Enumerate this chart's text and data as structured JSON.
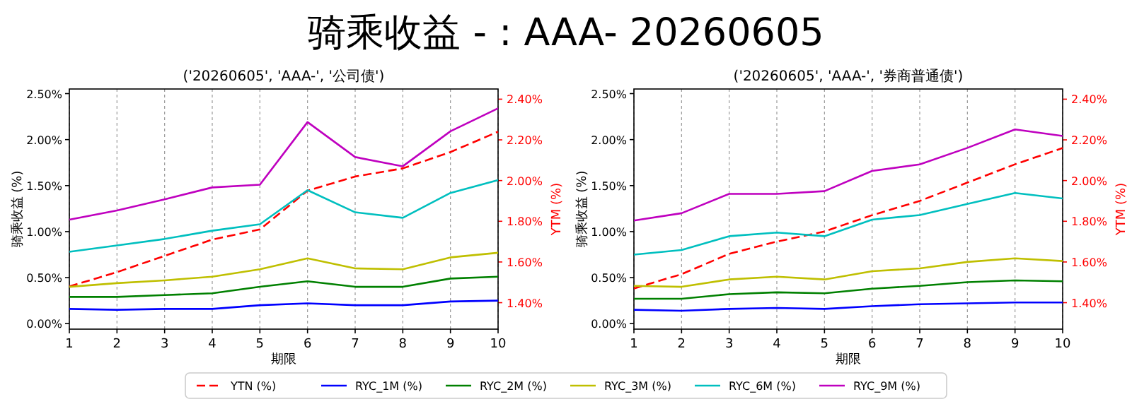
{
  "chart_data": [
    {
      "type": "line",
      "title": "('20260605', 'AAA-', '公司债')",
      "annotations": [
        "骑乘收益 - : AAA- 20260605"
      ],
      "xlabel": "期限",
      "ylabel": "骑乘收益 (%)",
      "y2label": "YTM (%)",
      "x": [
        1,
        2,
        3,
        4,
        5,
        6,
        7,
        8,
        9,
        10
      ],
      "xlim": [
        1,
        10
      ],
      "xticks": [
        1,
        2,
        3,
        4,
        5,
        6,
        7,
        8,
        9,
        10
      ],
      "ylim": [
        -0.06,
        2.55
      ],
      "yticks": [
        {
          "value": 0,
          "label": "0.00%"
        },
        {
          "value": 0.5,
          "label": "0.50%"
        },
        {
          "value": 1,
          "label": "1.00%"
        },
        {
          "value": 1.5,
          "label": "1.50%"
        },
        {
          "value": 2,
          "label": "2.00%"
        },
        {
          "value": 2.5,
          "label": "2.50%"
        }
      ],
      "y2lim": [
        1.27,
        2.45
      ],
      "y2ticks": [
        {
          "value": 1.4,
          "label": "1.40%"
        },
        {
          "value": 1.6,
          "label": "1.60%"
        },
        {
          "value": 1.8,
          "label": "1.80%"
        },
        {
          "value": 2.0,
          "label": "2.00%"
        },
        {
          "value": 2.2,
          "label": "2.20%"
        },
        {
          "value": 2.4,
          "label": "2.40%"
        }
      ],
      "grid": "x",
      "legend": "bottom",
      "series": [
        {
          "name": "YTN (%)",
          "color": "#ff0000",
          "axis": "y2",
          "line_style": "dashed",
          "values": [
            1.48,
            1.55,
            1.63,
            1.71,
            1.76,
            1.95,
            2.02,
            2.06,
            2.14,
            2.24
          ]
        },
        {
          "name": "RYC_1M (%)",
          "color": "#0000ff",
          "values": [
            0.16,
            0.15,
            0.16,
            0.16,
            0.2,
            0.22,
            0.2,
            0.2,
            0.24,
            0.25
          ]
        },
        {
          "name": "RYC_2M (%)",
          "color": "#008000",
          "values": [
            0.29,
            0.29,
            0.31,
            0.33,
            0.4,
            0.46,
            0.4,
            0.4,
            0.49,
            0.51
          ]
        },
        {
          "name": "RYC_3M (%)",
          "color": "#bfbf00",
          "values": [
            0.4,
            0.44,
            0.47,
            0.51,
            0.59,
            0.71,
            0.6,
            0.59,
            0.72,
            0.77
          ]
        },
        {
          "name": "RYC_6M (%)",
          "color": "#00bfbf",
          "values": [
            0.78,
            0.85,
            0.92,
            1.01,
            1.08,
            1.45,
            1.21,
            1.15,
            1.42,
            1.56
          ]
        },
        {
          "name": "RYC_9M (%)",
          "color": "#bf00bf",
          "values": [
            1.13,
            1.23,
            1.35,
            1.48,
            1.51,
            2.19,
            1.81,
            1.71,
            2.09,
            2.34
          ]
        }
      ]
    },
    {
      "type": "line",
      "title": "('20260605', 'AAA-', '券商普通债')",
      "xlabel": "期限",
      "ylabel": "骑乘收益 (%)",
      "y2label": "YTM (%)",
      "x": [
        1,
        2,
        3,
        4,
        5,
        6,
        7,
        8,
        9,
        10
      ],
      "xlim": [
        1,
        10
      ],
      "xticks": [
        1,
        2,
        3,
        4,
        5,
        6,
        7,
        8,
        9,
        10
      ],
      "ylim": [
        -0.06,
        2.55
      ],
      "yticks": [
        {
          "value": 0,
          "label": "0.00%"
        },
        {
          "value": 0.5,
          "label": "0.50%"
        },
        {
          "value": 1,
          "label": "1.00%"
        },
        {
          "value": 1.5,
          "label": "1.50%"
        },
        {
          "value": 2,
          "label": "2.00%"
        },
        {
          "value": 2.5,
          "label": "2.50%"
        }
      ],
      "y2lim": [
        1.27,
        2.45
      ],
      "y2ticks": [
        {
          "value": 1.4,
          "label": "1.40%"
        },
        {
          "value": 1.6,
          "label": "1.60%"
        },
        {
          "value": 1.8,
          "label": "1.80%"
        },
        {
          "value": 2.0,
          "label": "2.00%"
        },
        {
          "value": 2.2,
          "label": "2.20%"
        },
        {
          "value": 2.4,
          "label": "2.40%"
        }
      ],
      "grid": "x",
      "series": [
        {
          "name": "YTN (%)",
          "color": "#ff0000",
          "axis": "y2",
          "line_style": "dashed",
          "values": [
            1.47,
            1.54,
            1.64,
            1.7,
            1.75,
            1.83,
            1.9,
            1.99,
            2.08,
            2.16
          ]
        },
        {
          "name": "RYC_1M (%)",
          "color": "#0000ff",
          "values": [
            0.15,
            0.14,
            0.16,
            0.17,
            0.16,
            0.19,
            0.21,
            0.22,
            0.23,
            0.23
          ]
        },
        {
          "name": "RYC_2M (%)",
          "color": "#008000",
          "values": [
            0.27,
            0.27,
            0.32,
            0.34,
            0.33,
            0.38,
            0.41,
            0.45,
            0.47,
            0.46
          ]
        },
        {
          "name": "RYC_3M (%)",
          "color": "#bfbf00",
          "values": [
            0.41,
            0.4,
            0.48,
            0.51,
            0.48,
            0.57,
            0.6,
            0.67,
            0.71,
            0.68
          ]
        },
        {
          "name": "RYC_6M (%)",
          "color": "#00bfbf",
          "values": [
            0.75,
            0.8,
            0.95,
            0.99,
            0.95,
            1.13,
            1.18,
            1.3,
            1.42,
            1.36
          ]
        },
        {
          "name": "RYC_9M (%)",
          "color": "#bf00bf",
          "values": [
            1.12,
            1.2,
            1.41,
            1.41,
            1.44,
            1.66,
            1.73,
            1.91,
            2.11,
            2.04
          ]
        }
      ]
    }
  ]
}
